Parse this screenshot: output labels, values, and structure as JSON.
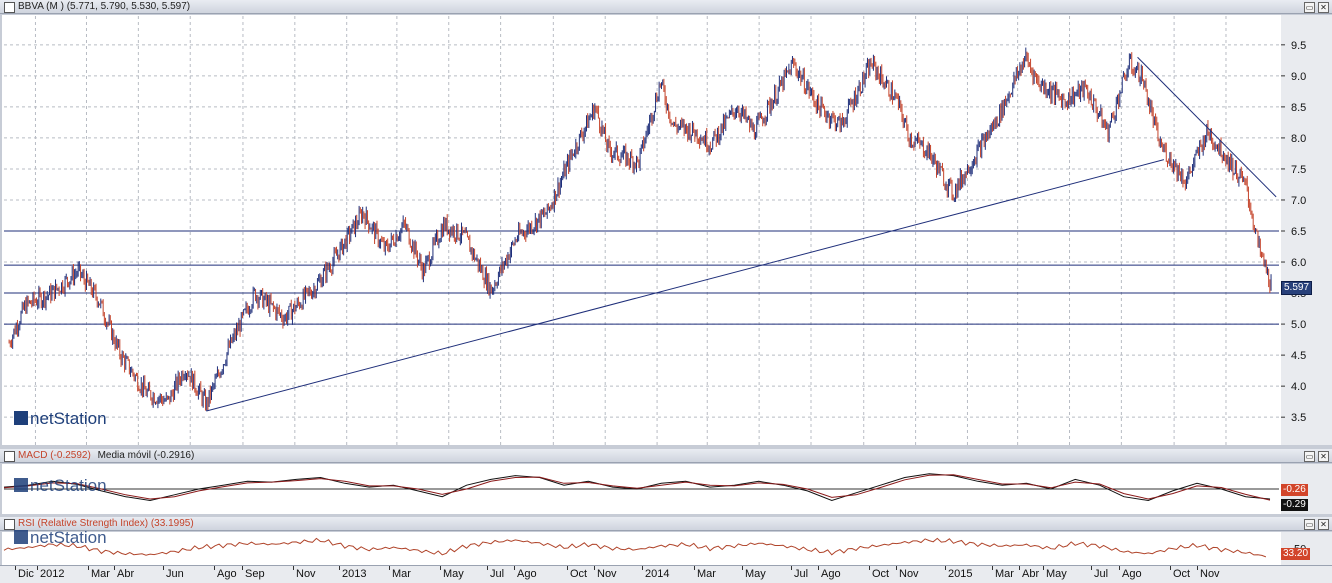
{
  "main": {
    "title": "BBVA (M ) (5.771, 5.790, 5.530, 5.597)",
    "last_price_label": "5.597",
    "logo": "netStation",
    "y_ticks": [
      "9.5",
      "9.0",
      "8.5",
      "8.0",
      "7.5",
      "7.0",
      "6.5",
      "6.0",
      "5.5",
      "5.0",
      "4.5",
      "4.0",
      "3.5"
    ]
  },
  "macd": {
    "title_a": "MACD (-0.2592)",
    "title_b": "Media móvil (-0.2916)",
    "y_tick": "0.0",
    "badge_macd": "-0.26",
    "badge_signal": "-0.29",
    "logo": "netStation"
  },
  "rsi": {
    "title": "RSI (Relative Strength Index) (33.1995)",
    "y_tick": "50",
    "badge": "33.20",
    "logo": "netStation"
  },
  "x_axis": {
    "labels": [
      "Dic",
      "2012",
      "Mar",
      "Abr",
      "Jun",
      "Ago",
      "Sep",
      "Nov",
      "2013",
      "Mar",
      "May",
      "Jul",
      "Ago",
      "Oct",
      "Nov",
      "2014",
      "Mar",
      "May",
      "Jul",
      "Ago",
      "Oct",
      "Nov",
      "2015",
      "Mar",
      "Abr",
      "May",
      "Jul",
      "Ago",
      "Oct",
      "Nov"
    ]
  },
  "colors": {
    "up": "#1f2f7a",
    "down": "#c4432a",
    "trendline": "#1f2f7a",
    "macd_signal": "#8b1a1a",
    "rsi_line": "#b0442a",
    "badge_blue": "#28407a",
    "badge_red": "#d2452a"
  },
  "chart_data": [
    {
      "type": "candlestick",
      "title": "BBVA (M )",
      "last": {
        "open": 5.771,
        "high": 5.79,
        "low": 5.53,
        "close": 5.597
      },
      "ylim": [
        3.1,
        9.9
      ],
      "x_range": [
        "2011-12",
        "2015-12"
      ],
      "grid": true,
      "close_path": [
        {
          "date": "2011-12-01",
          "close": 4.7
        },
        {
          "date": "2011-12-20",
          "close": 5.3
        },
        {
          "date": "2012-01-20",
          "close": 5.5
        },
        {
          "date": "2012-02-20",
          "close": 5.85
        },
        {
          "date": "2012-03-15",
          "close": 5.4
        },
        {
          "date": "2012-04-10",
          "close": 4.5
        },
        {
          "date": "2012-05-10",
          "close": 3.9
        },
        {
          "date": "2012-06-05",
          "close": 3.75
        },
        {
          "date": "2012-06-25",
          "close": 4.3
        },
        {
          "date": "2012-07-20",
          "close": 3.7
        },
        {
          "date": "2012-08-15",
          "close": 4.6
        },
        {
          "date": "2012-09-15",
          "close": 5.5
        },
        {
          "date": "2012-10-20",
          "close": 5.1
        },
        {
          "date": "2012-11-25",
          "close": 5.6
        },
        {
          "date": "2012-12-20",
          "close": 6.1
        },
        {
          "date": "2013-01-20",
          "close": 6.8
        },
        {
          "date": "2013-02-15",
          "close": 6.2
        },
        {
          "date": "2013-03-10",
          "close": 6.6
        },
        {
          "date": "2013-04-01",
          "close": 5.85
        },
        {
          "date": "2013-04-25",
          "close": 6.6
        },
        {
          "date": "2013-05-20",
          "close": 6.4
        },
        {
          "date": "2013-06-20",
          "close": 5.55
        },
        {
          "date": "2013-07-20",
          "close": 6.4
        },
        {
          "date": "2013-08-25",
          "close": 6.8
        },
        {
          "date": "2013-09-25",
          "close": 7.8
        },
        {
          "date": "2013-10-20",
          "close": 8.5
        },
        {
          "date": "2013-11-05",
          "close": 7.8
        },
        {
          "date": "2013-12-10",
          "close": 7.6
        },
        {
          "date": "2014-01-05",
          "close": 8.9
        },
        {
          "date": "2014-01-20",
          "close": 8.2
        },
        {
          "date": "2014-02-15",
          "close": 8.1
        },
        {
          "date": "2014-03-05",
          "close": 7.9
        },
        {
          "date": "2014-04-05",
          "close": 8.5
        },
        {
          "date": "2014-04-25",
          "close": 8.1
        },
        {
          "date": "2014-05-25",
          "close": 8.8
        },
        {
          "date": "2014-06-10",
          "close": 9.2
        },
        {
          "date": "2014-07-10",
          "close": 8.5
        },
        {
          "date": "2014-08-05",
          "close": 8.2
        },
        {
          "date": "2014-09-10",
          "close": 9.2
        },
        {
          "date": "2014-10-10",
          "close": 8.6
        },
        {
          "date": "2014-10-25",
          "close": 8.0
        },
        {
          "date": "2014-11-15",
          "close": 7.8
        },
        {
          "date": "2014-12-15",
          "close": 7.1
        },
        {
          "date": "2015-01-05",
          "close": 7.6
        },
        {
          "date": "2015-02-05",
          "close": 8.3
        },
        {
          "date": "2015-03-10",
          "close": 9.3
        },
        {
          "date": "2015-03-25",
          "close": 8.9
        },
        {
          "date": "2015-04-25",
          "close": 8.6
        },
        {
          "date": "2015-05-20",
          "close": 8.8
        },
        {
          "date": "2015-06-15",
          "close": 8.1
        },
        {
          "date": "2015-07-10",
          "close": 9.2
        },
        {
          "date": "2015-07-25",
          "close": 9.0
        },
        {
          "date": "2015-08-15",
          "close": 7.9
        },
        {
          "date": "2015-09-15",
          "close": 7.3
        },
        {
          "date": "2015-10-10",
          "close": 8.1
        },
        {
          "date": "2015-11-01",
          "close": 7.7
        },
        {
          "date": "2015-11-25",
          "close": 7.2
        },
        {
          "date": "2015-12-10",
          "close": 6.2
        },
        {
          "date": "2015-12-25",
          "close": 5.6
        }
      ],
      "horizontal_lines": [
        6.5,
        5.95,
        5.5,
        5.0
      ],
      "trendlines": [
        {
          "from": {
            "date": "2012-07-20",
            "value": 3.6
          },
          "to": {
            "date": "2015-08-20",
            "value": 7.65
          }
        },
        {
          "from": {
            "date": "2015-07-20",
            "value": 9.3
          },
          "to": {
            "date": "2015-12-30",
            "value": 7.05
          }
        }
      ]
    },
    {
      "type": "line",
      "title": "MACD",
      "series": [
        {
          "name": "MACD (-0.2592)",
          "values": [
            0.05,
            0.1,
            0.2,
            0.12,
            -0.05,
            -0.2,
            -0.3,
            -0.15,
            0.0,
            0.1,
            0.2,
            0.18,
            0.25,
            0.3,
            0.15,
            0.05,
            0.1,
            -0.05,
            -0.2,
            0.1,
            0.25,
            0.35,
            0.3,
            0.1,
            0.2,
            0.05,
            0.0,
            0.15,
            0.2,
            0.05,
            0.1,
            0.2,
            0.1,
            -0.05,
            -0.3,
            -0.1,
            0.1,
            0.3,
            0.4,
            0.35,
            0.2,
            0.1,
            0.15,
            0.0,
            0.25,
            0.1,
            -0.2,
            -0.3,
            -0.05,
            0.15,
            0.0,
            -0.2,
            -0.26
          ]
        },
        {
          "name": "Media móvil (-0.2916)",
          "values": [
            0.03,
            0.08,
            0.16,
            0.14,
            0.0,
            -0.15,
            -0.26,
            -0.2,
            -0.05,
            0.06,
            0.16,
            0.18,
            0.22,
            0.27,
            0.2,
            0.08,
            0.08,
            0.0,
            -0.14,
            0.0,
            0.2,
            0.3,
            0.31,
            0.15,
            0.17,
            0.08,
            0.02,
            0.1,
            0.18,
            0.1,
            0.08,
            0.16,
            0.12,
            0.0,
            -0.22,
            -0.15,
            0.04,
            0.24,
            0.36,
            0.37,
            0.25,
            0.13,
            0.13,
            0.03,
            0.18,
            0.13,
            -0.12,
            -0.26,
            -0.12,
            0.08,
            0.04,
            -0.14,
            -0.29
          ]
        }
      ],
      "ylim": [
        -0.6,
        0.6
      ]
    },
    {
      "type": "line",
      "title": "RSI (Relative Strength Index)",
      "series": [
        {
          "name": "RSI (Relative Strength Index) (33.1995)",
          "values": [
            48,
            52,
            58,
            55,
            45,
            40,
            38,
            44,
            52,
            56,
            60,
            58,
            62,
            66,
            55,
            48,
            52,
            46,
            40,
            55,
            62,
            66,
            60,
            52,
            58,
            50,
            48,
            55,
            58,
            50,
            55,
            60,
            55,
            48,
            42,
            50,
            56,
            62,
            66,
            64,
            58,
            55,
            57,
            50,
            60,
            55,
            44,
            40,
            50,
            56,
            48,
            42,
            33.2
          ]
        }
      ],
      "ylim": [
        20,
        80
      ]
    }
  ]
}
